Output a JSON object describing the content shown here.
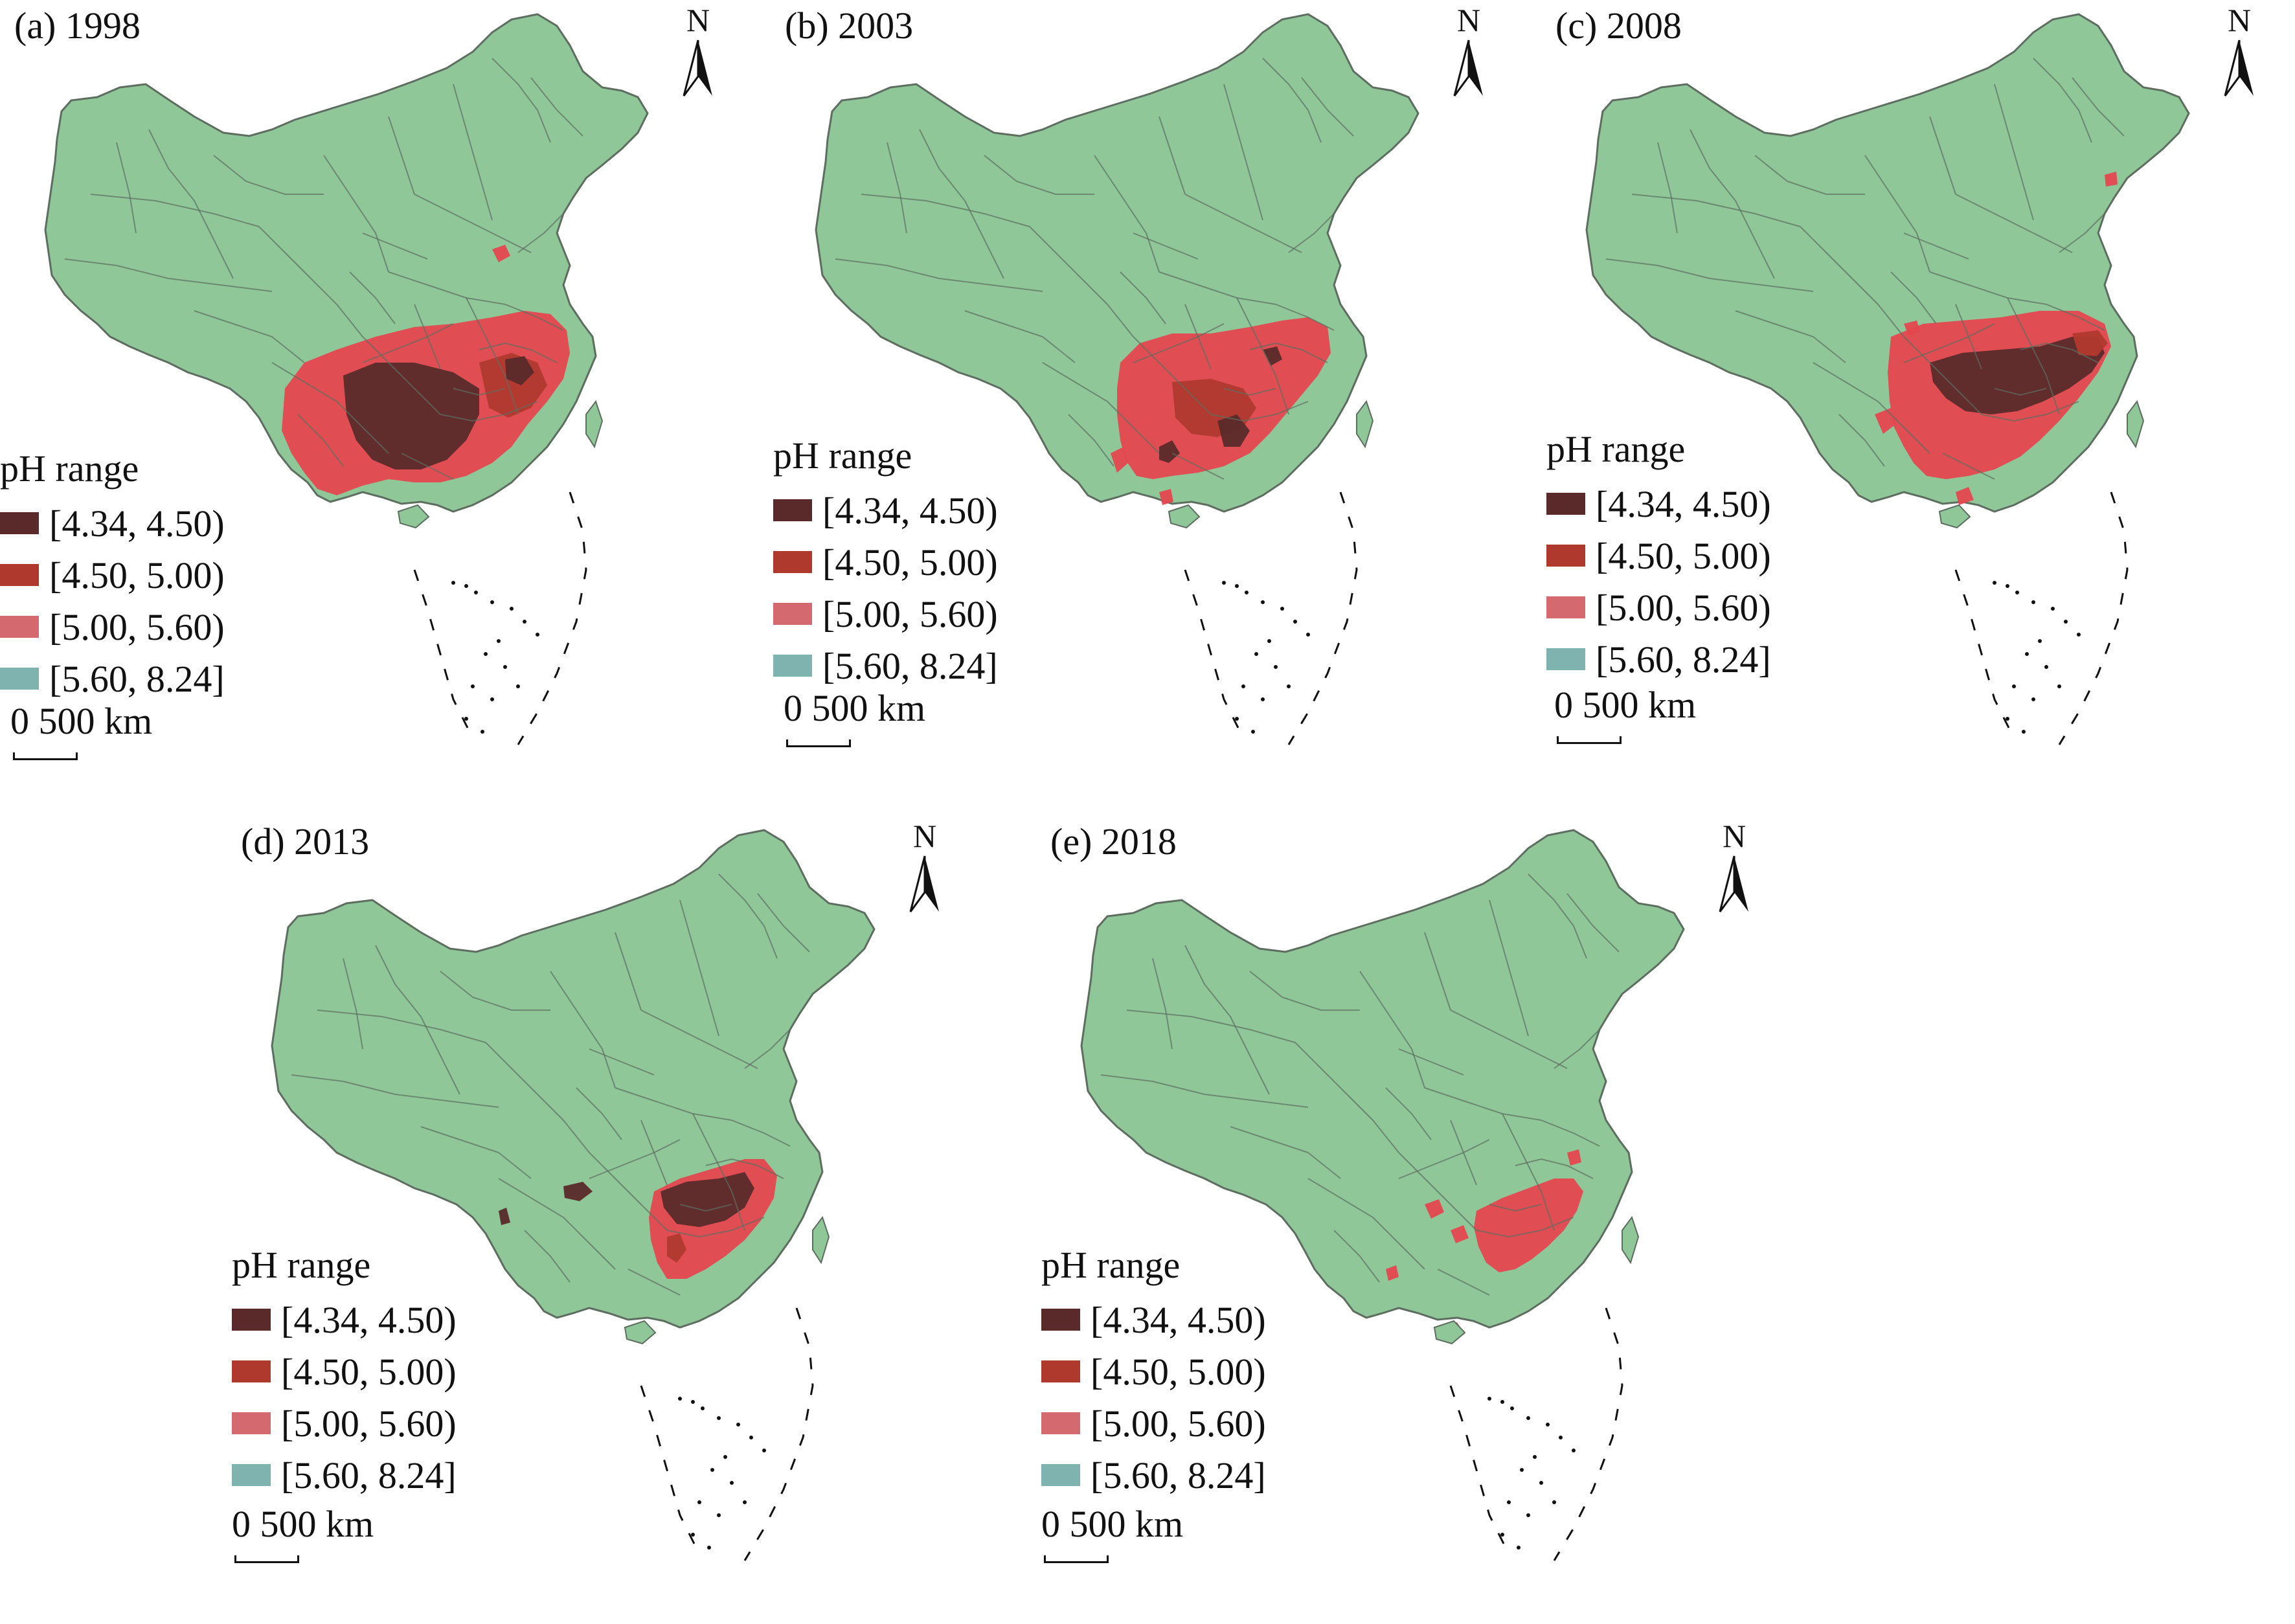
{
  "figure": {
    "panels": [
      {
        "id": "a",
        "title": "(a) 1998"
      },
      {
        "id": "b",
        "title": "(b) 2003"
      },
      {
        "id": "c",
        "title": "(c) 2008"
      },
      {
        "id": "d",
        "title": "(d) 2013"
      },
      {
        "id": "e",
        "title": "(e) 2018"
      }
    ],
    "north_label": "N",
    "legend": {
      "title": "pH  range",
      "items": [
        {
          "label": "[4.34, 4.50)",
          "color": "#5a2a2a"
        },
        {
          "label": "[4.50, 5.00)",
          "color": "#b0392e"
        },
        {
          "label": "[5.00, 5.60)",
          "color": "#d4696f"
        },
        {
          "label": "[5.60, 8.24]",
          "color": "#7fb3b0"
        }
      ]
    },
    "scale": {
      "label": "0   500 km"
    },
    "colors": {
      "land": "#8fc799",
      "border": "#5d6d60",
      "acid_high": "#e5474f",
      "acid_dark": "#5a2a2a",
      "acid_mid": "#b0392e"
    }
  }
}
